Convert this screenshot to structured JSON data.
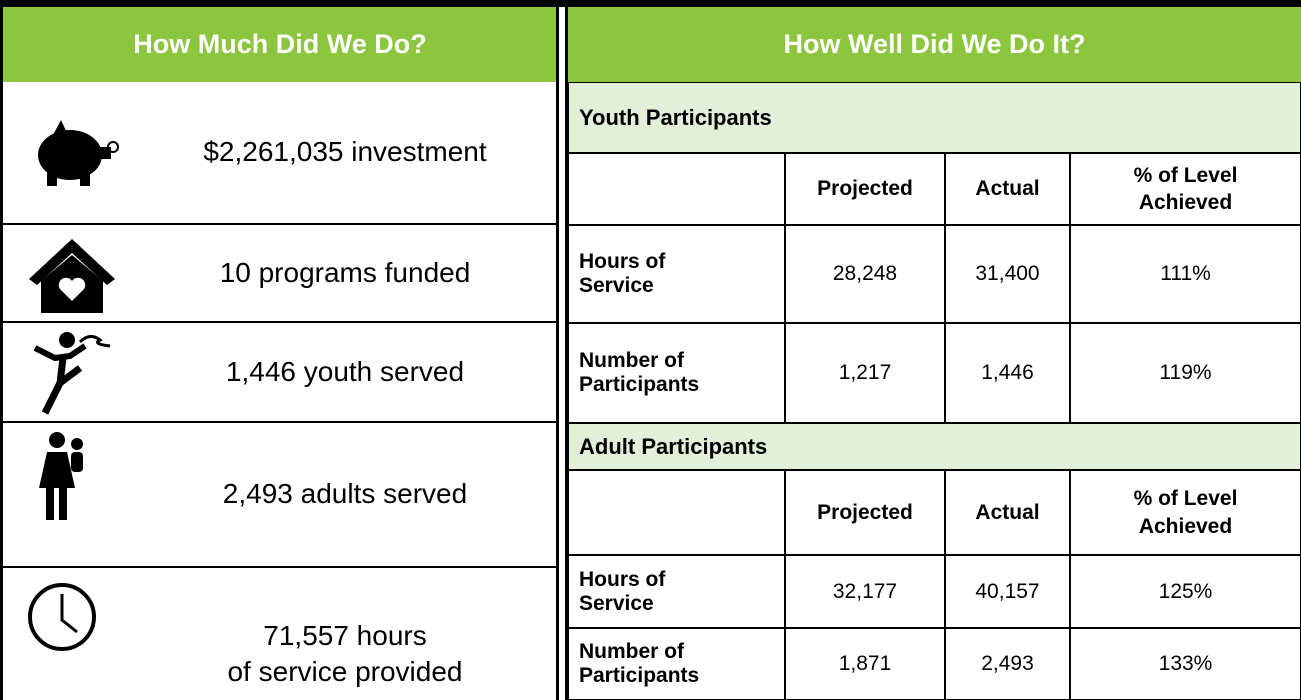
{
  "left": {
    "header": "How Much Did We Do?",
    "items": [
      {
        "text": "$2,261,035 investment"
      },
      {
        "text": "10 programs funded"
      },
      {
        "text": "1,446 youth served"
      },
      {
        "text": "2,493 adults served"
      },
      {
        "lines": [
          "71,557 hours",
          "of service provided"
        ]
      }
    ]
  },
  "right": {
    "header": "How Well Did We Do It?",
    "sections": [
      {
        "title": "Youth Participants",
        "columns": [
          "Projected",
          "Actual",
          "% of Level Achieved"
        ],
        "rows": [
          [
            "Hours of Service",
            "28,248",
            "31,400",
            "111%"
          ],
          [
            "Number of Participants",
            "1,217",
            "1,446",
            "119%"
          ]
        ]
      },
      {
        "title": "Adult Participants",
        "columns": [
          "Projected",
          "Actual",
          "% of Level Achieved"
        ],
        "rows": [
          [
            "Hours of Service",
            "32,177",
            "40,157",
            "125%"
          ],
          [
            "Number of Participants",
            "1,871",
            "2,493",
            "133%"
          ]
        ]
      }
    ]
  }
}
